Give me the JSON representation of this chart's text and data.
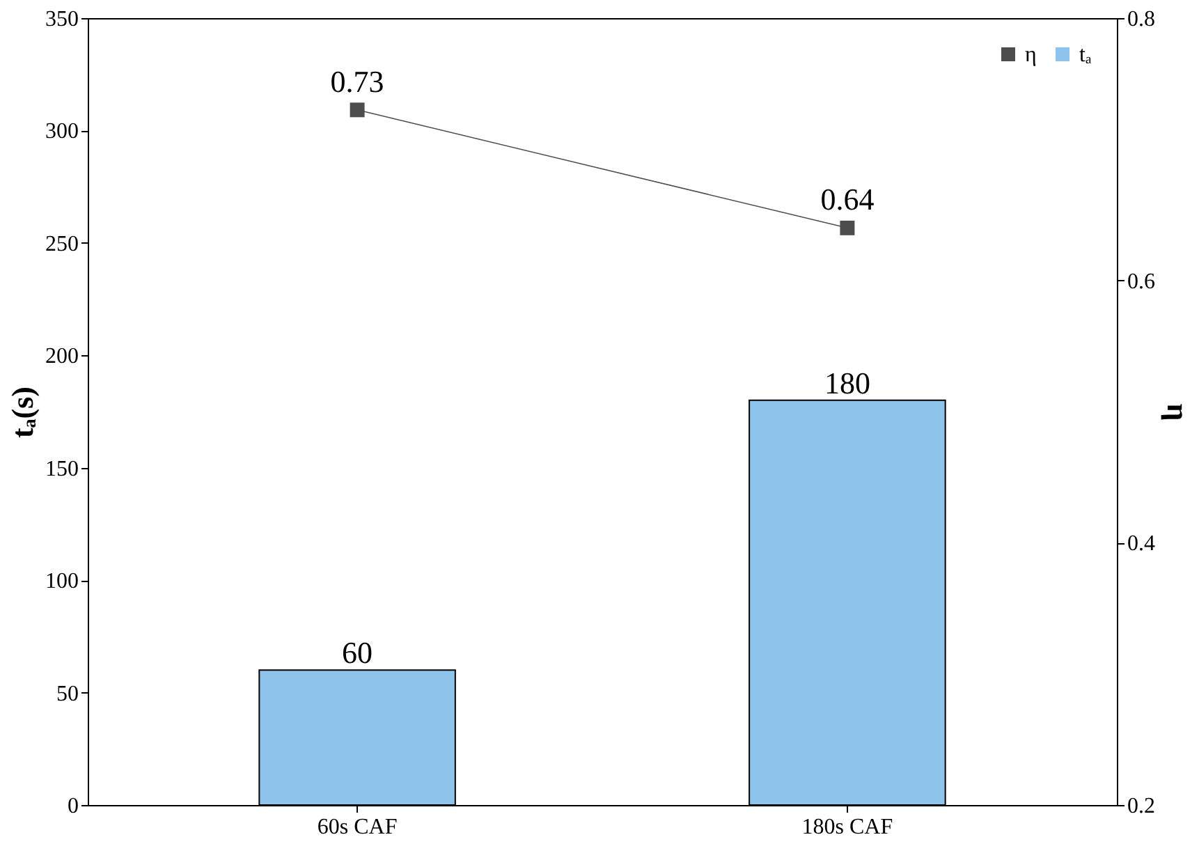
{
  "chart_data": {
    "type": "bar",
    "categories": [
      "60s CAF",
      "180s CAF"
    ],
    "ylabel": "tₐ(s)",
    "y2label": "η",
    "ylim": [
      0,
      350
    ],
    "yticks": [
      0,
      50,
      100,
      150,
      200,
      250,
      300,
      350
    ],
    "y2lim": [
      0.2,
      0.8
    ],
    "y2ticks": [
      0.2,
      0.4,
      0.6,
      0.8
    ],
    "series": [
      {
        "name": "η",
        "type": "line",
        "axis": "y2",
        "color": "#4d4d4d",
        "values": [
          0.73,
          0.64
        ],
        "marker": "square",
        "line_style": "solid"
      },
      {
        "name": "tₐ",
        "color": "#8ec3ec",
        "values": [
          60,
          180
        ]
      }
    ],
    "data_labels": true,
    "grid": false,
    "legend": "top right"
  }
}
